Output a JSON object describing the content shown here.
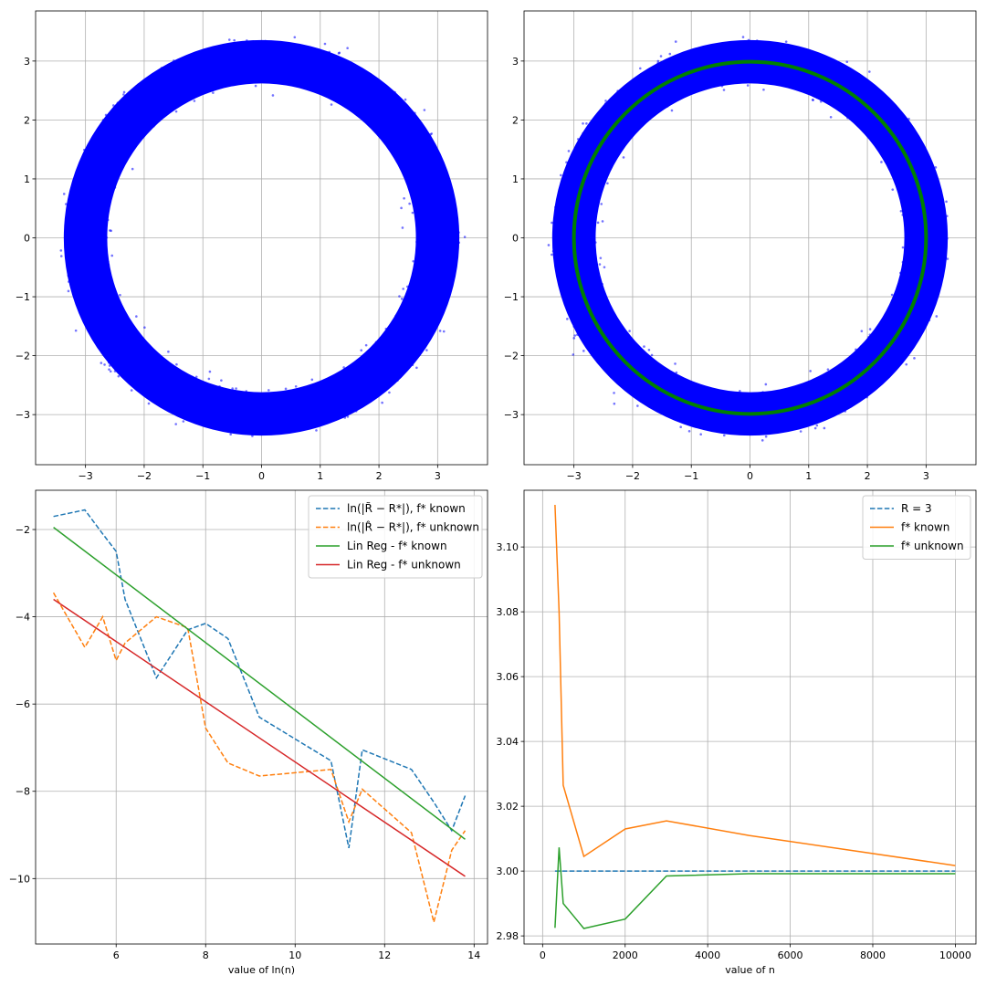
{
  "chart_data": [
    {
      "id": "ring-scatter",
      "type": "scatter",
      "description_points": "noisy ring of points centered at origin, radius about 3",
      "ring": {
        "center": [
          0,
          0
        ],
        "radius": 3,
        "inner_radius": 2.55,
        "outer_radius": 3.45
      },
      "point_color": "#0000ff",
      "xlim": [
        -3.85,
        3.85
      ],
      "ylim": [
        -3.85,
        3.85
      ],
      "xticks": [
        -3,
        -2,
        -1,
        0,
        1,
        2,
        3
      ],
      "yticks": [
        -3,
        -2,
        -1,
        0,
        1,
        2,
        3
      ],
      "grid": true,
      "xlabel": "",
      "ylabel": ""
    },
    {
      "id": "ring-scatter-fit",
      "type": "scatter",
      "ring": {
        "center": [
          0,
          0
        ],
        "radius": 3,
        "inner_radius": 2.55,
        "outer_radius": 3.45
      },
      "point_color": "#0000ff",
      "fit_circle": {
        "radius": 3,
        "color": "#008000"
      },
      "xlim": [
        -3.85,
        3.85
      ],
      "ylim": [
        -3.85,
        3.85
      ],
      "xticks": [
        -3,
        -2,
        -1,
        0,
        1,
        2,
        3
      ],
      "yticks": [
        -3,
        -2,
        -1,
        0,
        1,
        2,
        3
      ],
      "grid": true,
      "xlabel": "",
      "ylabel": ""
    },
    {
      "id": "log-error",
      "type": "line",
      "xlabel": "value of ln(n)",
      "ylabel": "",
      "xlim": [
        4.2,
        14.3
      ],
      "ylim": [
        -11.5,
        -1.1
      ],
      "xticks": [
        6,
        8,
        10,
        12,
        14
      ],
      "yticks": [
        -10,
        -8,
        -6,
        -4,
        -2
      ],
      "grid": true,
      "legend_position": "top-right",
      "series": [
        {
          "name": "ln(|R̃ − R*|), f* known",
          "color": "#1f77b4",
          "dash": true,
          "x": [
            4.6,
            5.3,
            5.7,
            6.0,
            6.2,
            6.9,
            7.6,
            8.0,
            8.5,
            9.2,
            10.8,
            11.2,
            11.5,
            12.6,
            13.1,
            13.5,
            13.8
          ],
          "y": [
            -1.7,
            -1.55,
            -2.1,
            -2.5,
            -3.6,
            -5.4,
            -4.3,
            -4.15,
            -4.5,
            -6.3,
            -7.3,
            -9.3,
            -7.05,
            -7.5,
            -8.25,
            -8.9,
            -8.1
          ]
        },
        {
          "name": "ln(|R̂ − R*|), f*  unknown",
          "color": "#ff7f0e",
          "dash": true,
          "x": [
            4.6,
            5.3,
            5.7,
            6.0,
            6.2,
            6.9,
            7.6,
            8.0,
            8.5,
            9.2,
            10.8,
            11.2,
            11.5,
            12.6,
            13.1,
            13.5,
            13.8
          ],
          "y": [
            -3.45,
            -4.7,
            -4.0,
            -5.0,
            -4.6,
            -4.0,
            -4.25,
            -6.55,
            -7.35,
            -7.65,
            -7.5,
            -8.7,
            -7.95,
            -8.95,
            -11.0,
            -9.35,
            -8.9
          ]
        },
        {
          "name": "Lin Reg - f*  known",
          "color": "#2ca02c",
          "dash": false,
          "x": [
            4.6,
            13.8
          ],
          "y": [
            -1.95,
            -9.1
          ]
        },
        {
          "name": "Lin Reg - f*  unknown",
          "color": "#d62728",
          "dash": false,
          "x": [
            4.6,
            13.8
          ],
          "y": [
            -3.6,
            -9.95
          ]
        }
      ]
    },
    {
      "id": "radius-estimate",
      "type": "line",
      "xlabel": "value of n",
      "ylabel": "",
      "xlim": [
        -450,
        10500
      ],
      "ylim": [
        2.9775,
        3.1175
      ],
      "xticks": [
        0,
        2000,
        4000,
        6000,
        8000,
        10000
      ],
      "yticks": [
        2.98,
        3.0,
        3.02,
        3.04,
        3.06,
        3.08,
        3.1
      ],
      "ytick_labels": [
        "2.98",
        "3.00",
        "3.02",
        "3.04",
        "3.06",
        "3.08",
        "3.10"
      ],
      "grid": true,
      "legend_position": "top-right",
      "series": [
        {
          "name": "R = 3",
          "color": "#1f77b4",
          "dash": true,
          "x": [
            300,
            10000
          ],
          "y": [
            3.0,
            3.0
          ]
        },
        {
          "name": "f* known",
          "color": "#ff7f0e",
          "dash": false,
          "x": [
            300,
            400,
            500,
            1000,
            2000,
            3000,
            5000,
            10000
          ],
          "y": [
            3.113,
            3.08,
            3.0265,
            3.0045,
            3.013,
            3.0155,
            3.011,
            3.0017
          ]
        },
        {
          "name": "f* unknown",
          "color": "#2ca02c",
          "dash": false,
          "x": [
            300,
            400,
            500,
            1000,
            2000,
            3000,
            5000,
            10000
          ],
          "y": [
            2.9825,
            3.0073,
            2.99,
            2.9823,
            2.9852,
            2.9985,
            2.9992,
            2.9992
          ]
        }
      ]
    }
  ]
}
